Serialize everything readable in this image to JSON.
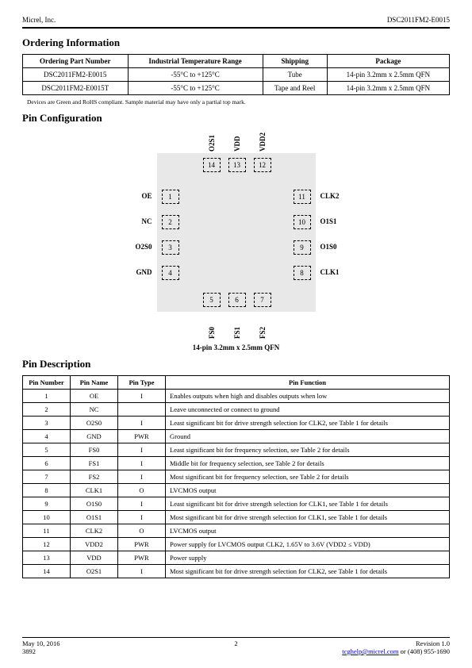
{
  "header": {
    "company": "Micrel, Inc.",
    "part": "DSC2011FM2-E0015"
  },
  "ordering": {
    "heading": "Ordering Information",
    "columns": [
      "Ordering Part Number",
      "Industrial Temperature Range",
      "Shipping",
      "Package"
    ],
    "rows": [
      [
        "DSC2011FM2-E0015",
        "-55°C to +125°C",
        "Tube",
        "14-pin 3.2mm x 2.5mm QFN"
      ],
      [
        "DSC2011FM2-E0015T",
        "-55°C to +125°C",
        "Tape and Reel",
        "14-pin 3.2mm x 2.5mm QFN"
      ]
    ],
    "note": "Devices are Green and RoHS compliant. Sample material may have only a partial top mark."
  },
  "pinConfig": {
    "heading": "Pin Configuration",
    "caption": "14-pin 3.2mm x 2.5mm QFN",
    "left": [
      {
        "n": "1",
        "lbl": "OE"
      },
      {
        "n": "2",
        "lbl": "NC"
      },
      {
        "n": "3",
        "lbl": "O2S0"
      },
      {
        "n": "4",
        "lbl": "GND"
      }
    ],
    "bottom": [
      {
        "n": "5",
        "lbl": "FS0"
      },
      {
        "n": "6",
        "lbl": "FS1"
      },
      {
        "n": "7",
        "lbl": "FS2"
      }
    ],
    "right": [
      {
        "n": "11",
        "lbl": "CLK2"
      },
      {
        "n": "10",
        "lbl": "O1S1"
      },
      {
        "n": "9",
        "lbl": "O1S0"
      },
      {
        "n": "8",
        "lbl": "CLK1"
      }
    ],
    "top": [
      {
        "n": "14",
        "lbl": "O2S1"
      },
      {
        "n": "13",
        "lbl": "VDD"
      },
      {
        "n": "12",
        "lbl": "VDD2"
      }
    ]
  },
  "pinDesc": {
    "heading": "Pin Description",
    "columns": [
      "Pin Number",
      "Pin Name",
      "Pin Type",
      "Pin Function"
    ],
    "rows": [
      [
        "1",
        "OE",
        "I",
        "Enables outputs when high and disables outputs when low"
      ],
      [
        "2",
        "NC",
        "",
        "Leave unconnected or connect to ground"
      ],
      [
        "3",
        "O2S0",
        "I",
        "Least significant bit for drive strength selection for CLK2, see Table 1 for details"
      ],
      [
        "4",
        "GND",
        "PWR",
        "Ground"
      ],
      [
        "5",
        "FS0",
        "I",
        "Least significant bit for frequency selection, see Table 2 for details"
      ],
      [
        "6",
        "FS1",
        "I",
        "Middle bit for frequency selection, see Table 2 for details"
      ],
      [
        "7",
        "FS2",
        "I",
        "Most significant bit for frequency selection, see Table 2 for details"
      ],
      [
        "8",
        "CLK1",
        "O",
        "LVCMOS output"
      ],
      [
        "9",
        "O1S0",
        "I",
        "Least significant bit for drive strength selection for CLK1, see Table 1 for details"
      ],
      [
        "10",
        "O1S1",
        "I",
        "Most significant bit for drive strength selection for CLK1, see Table 1 for details"
      ],
      [
        "11",
        "CLK2",
        "O",
        "LVCMOS output"
      ],
      [
        "12",
        "VDD2",
        "PWR",
        "Power supply for LVCMOS output CLK2, 1.65V to 3.6V (VDD2 ≤ VDD)"
      ],
      [
        "13",
        "VDD",
        "PWR",
        "Power supply"
      ],
      [
        "14",
        "O2S1",
        "I",
        "Most significant bit for drive strength selection for CLK2, see Table 1 for details"
      ]
    ]
  },
  "footer": {
    "date": "May 10, 2016",
    "code": "3892",
    "page": "2",
    "revision": "Revision 1.0",
    "contactEmail": "tcghelp@micrel.com",
    "contactSuffix": " or (408) 955-1690"
  }
}
